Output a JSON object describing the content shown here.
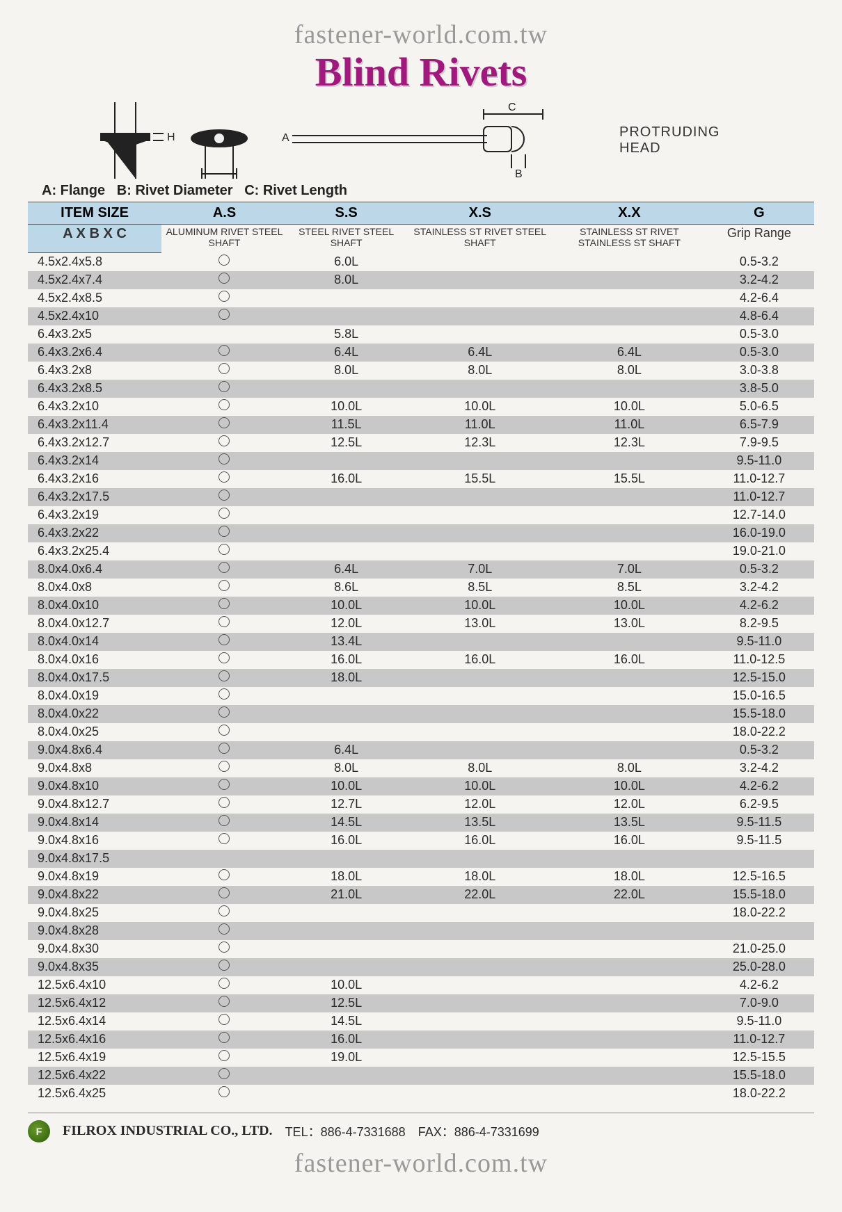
{
  "watermark": "fastener-world.com.tw",
  "title": "Blind Rivets",
  "diagram_label": "PROTRUDING HEAD",
  "legend": {
    "a": "A: Flange",
    "b": "B: Rivet Diameter",
    "c": "C: Rivet Length"
  },
  "headers": {
    "item": "ITEM SIZE",
    "axbxc": "A X B X C",
    "as": "A.S",
    "ss": "S.S",
    "xs": "X.S",
    "xx": "X.X",
    "g": "G",
    "as_sub": "ALUMINUM RIVET\nSTEEL      SHAFT",
    "ss_sub": "STEEL RIVET\nSTEEL SHAFT",
    "xs_sub": "STAINLESS ST RIVET\nSTEEL      SHAFT",
    "xx_sub": "STAINLESS ST RIVET\nSTAINLESS ST SHAFT",
    "g_sub": "Grip Range"
  },
  "rows": [
    {
      "size": "4.5x2.4x5.8",
      "as": true,
      "ss": "6.0L",
      "xs": "",
      "xx": "",
      "g": "0.5-3.2"
    },
    {
      "size": "4.5x2.4x7.4",
      "as": true,
      "ss": "8.0L",
      "xs": "",
      "xx": "",
      "g": "3.2-4.2"
    },
    {
      "size": "4.5x2.4x8.5",
      "as": true,
      "ss": "",
      "xs": "",
      "xx": "",
      "g": "4.2-6.4"
    },
    {
      "size": "4.5x2.4x10",
      "as": true,
      "ss": "",
      "xs": "",
      "xx": "",
      "g": "4.8-6.4"
    },
    {
      "size": "6.4x3.2x5",
      "as": false,
      "ss": "5.8L",
      "xs": "",
      "xx": "",
      "g": "0.5-3.0"
    },
    {
      "size": "6.4x3.2x6.4",
      "as": true,
      "ss": "6.4L",
      "xs": "6.4L",
      "xx": "6.4L",
      "g": "0.5-3.0"
    },
    {
      "size": "6.4x3.2x8",
      "as": true,
      "ss": "8.0L",
      "xs": "8.0L",
      "xx": "8.0L",
      "g": "3.0-3.8"
    },
    {
      "size": "6.4x3.2x8.5",
      "as": true,
      "ss": "",
      "xs": "",
      "xx": "",
      "g": "3.8-5.0"
    },
    {
      "size": "6.4x3.2x10",
      "as": true,
      "ss": "10.0L",
      "xs": "10.0L",
      "xx": "10.0L",
      "g": "5.0-6.5"
    },
    {
      "size": "6.4x3.2x11.4",
      "as": true,
      "ss": "11.5L",
      "xs": "11.0L",
      "xx": "11.0L",
      "g": "6.5-7.9"
    },
    {
      "size": "6.4x3.2x12.7",
      "as": true,
      "ss": "12.5L",
      "xs": "12.3L",
      "xx": "12.3L",
      "g": "7.9-9.5"
    },
    {
      "size": "6.4x3.2x14",
      "as": true,
      "ss": "",
      "xs": "",
      "xx": "",
      "g": "9.5-11.0"
    },
    {
      "size": "6.4x3.2x16",
      "as": true,
      "ss": "16.0L",
      "xs": "15.5L",
      "xx": "15.5L",
      "g": "11.0-12.7"
    },
    {
      "size": "6.4x3.2x17.5",
      "as": true,
      "ss": "",
      "xs": "",
      "xx": "",
      "g": "11.0-12.7"
    },
    {
      "size": "6.4x3.2x19",
      "as": true,
      "ss": "",
      "xs": "",
      "xx": "",
      "g": "12.7-14.0"
    },
    {
      "size": "6.4x3.2x22",
      "as": true,
      "ss": "",
      "xs": "",
      "xx": "",
      "g": "16.0-19.0"
    },
    {
      "size": "6.4x3.2x25.4",
      "as": true,
      "ss": "",
      "xs": "",
      "xx": "",
      "g": "19.0-21.0"
    },
    {
      "size": "8.0x4.0x6.4",
      "as": true,
      "ss": "6.4L",
      "xs": "7.0L",
      "xx": "7.0L",
      "g": "0.5-3.2"
    },
    {
      "size": "8.0x4.0x8",
      "as": true,
      "ss": "8.6L",
      "xs": "8.5L",
      "xx": "8.5L",
      "g": "3.2-4.2"
    },
    {
      "size": "8.0x4.0x10",
      "as": true,
      "ss": "10.0L",
      "xs": "10.0L",
      "xx": "10.0L",
      "g": "4.2-6.2"
    },
    {
      "size": "8.0x4.0x12.7",
      "as": true,
      "ss": "12.0L",
      "xs": "13.0L",
      "xx": "13.0L",
      "g": "8.2-9.5"
    },
    {
      "size": "8.0x4.0x14",
      "as": true,
      "ss": "13.4L",
      "xs": "",
      "xx": "",
      "g": "9.5-11.0"
    },
    {
      "size": "8.0x4.0x16",
      "as": true,
      "ss": "16.0L",
      "xs": "16.0L",
      "xx": "16.0L",
      "g": "11.0-12.5"
    },
    {
      "size": "8.0x4.0x17.5",
      "as": true,
      "ss": "18.0L",
      "xs": "",
      "xx": "",
      "g": "12.5-15.0"
    },
    {
      "size": "8.0x4.0x19",
      "as": true,
      "ss": "",
      "xs": "",
      "xx": "",
      "g": "15.0-16.5"
    },
    {
      "size": "8.0x4.0x22",
      "as": true,
      "ss": "",
      "xs": "",
      "xx": "",
      "g": "15.5-18.0"
    },
    {
      "size": "8.0x4.0x25",
      "as": true,
      "ss": "",
      "xs": "",
      "xx": "",
      "g": "18.0-22.2"
    },
    {
      "size": "9.0x4.8x6.4",
      "as": true,
      "ss": "6.4L",
      "xs": "",
      "xx": "",
      "g": "0.5-3.2"
    },
    {
      "size": "9.0x4.8x8",
      "as": true,
      "ss": "8.0L",
      "xs": "8.0L",
      "xx": "8.0L",
      "g": "3.2-4.2"
    },
    {
      "size": "9.0x4.8x10",
      "as": true,
      "ss": "10.0L",
      "xs": "10.0L",
      "xx": "10.0L",
      "g": "4.2-6.2"
    },
    {
      "size": "9.0x4.8x12.7",
      "as": true,
      "ss": "12.7L",
      "xs": "12.0L",
      "xx": "12.0L",
      "g": "6.2-9.5"
    },
    {
      "size": "9.0x4.8x14",
      "as": true,
      "ss": "14.5L",
      "xs": "13.5L",
      "xx": "13.5L",
      "g": "9.5-11.5"
    },
    {
      "size": "9.0x4.8x16",
      "as": true,
      "ss": "16.0L",
      "xs": "16.0L",
      "xx": "16.0L",
      "g": "9.5-11.5"
    },
    {
      "size": "9.0x4.8x17.5",
      "as": false,
      "ss": "",
      "xs": "",
      "xx": "",
      "g": ""
    },
    {
      "size": "9.0x4.8x19",
      "as": true,
      "ss": "18.0L",
      "xs": "18.0L",
      "xx": "18.0L",
      "g": "12.5-16.5"
    },
    {
      "size": "9.0x4.8x22",
      "as": true,
      "ss": "21.0L",
      "xs": "22.0L",
      "xx": "22.0L",
      "g": "15.5-18.0"
    },
    {
      "size": "9.0x4.8x25",
      "as": true,
      "ss": "",
      "xs": "",
      "xx": "",
      "g": "18.0-22.2"
    },
    {
      "size": "9.0x4.8x28",
      "as": true,
      "ss": "",
      "xs": "",
      "xx": "",
      "g": ""
    },
    {
      "size": "9.0x4.8x30",
      "as": true,
      "ss": "",
      "xs": "",
      "xx": "",
      "g": "21.0-25.0"
    },
    {
      "size": "9.0x4.8x35",
      "as": true,
      "ss": "",
      "xs": "",
      "xx": "",
      "g": "25.0-28.0"
    },
    {
      "size": "12.5x6.4x10",
      "as": true,
      "ss": "10.0L",
      "xs": "",
      "xx": "",
      "g": "4.2-6.2"
    },
    {
      "size": "12.5x6.4x12",
      "as": true,
      "ss": "12.5L",
      "xs": "",
      "xx": "",
      "g": "7.0-9.0"
    },
    {
      "size": "12.5x6.4x14",
      "as": true,
      "ss": "14.5L",
      "xs": "",
      "xx": "",
      "g": "9.5-11.0"
    },
    {
      "size": "12.5x6.4x16",
      "as": true,
      "ss": "16.0L",
      "xs": "",
      "xx": "",
      "g": "11.0-12.7"
    },
    {
      "size": "12.5x6.4x19",
      "as": true,
      "ss": "19.0L",
      "xs": "",
      "xx": "",
      "g": "12.5-15.5"
    },
    {
      "size": "12.5x6.4x22",
      "as": true,
      "ss": "",
      "xs": "",
      "xx": "",
      "g": "15.5-18.0"
    },
    {
      "size": "12.5x6.4x25",
      "as": true,
      "ss": "",
      "xs": "",
      "xx": "",
      "g": "18.0-22.2"
    }
  ],
  "footer": {
    "company": "FILROX INDUSTRIAL CO., LTD.",
    "tel_label": "TEL：",
    "tel": "886-4-7331688",
    "fax_label": "FAX：",
    "fax": "886-4-7331699"
  },
  "colors": {
    "header_bg": "#bcd7e8",
    "shade_bg": "#c8c8c8",
    "title_color": "#a01a7d"
  }
}
